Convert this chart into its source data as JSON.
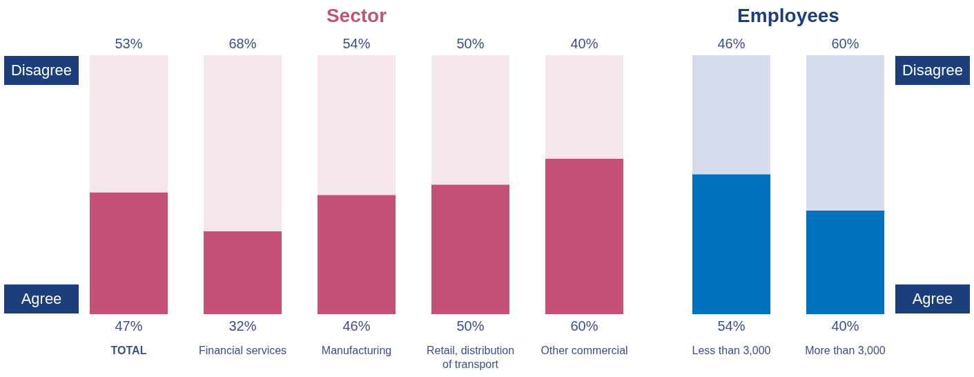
{
  "chart_data": [
    {
      "type": "bar",
      "title": "Sector",
      "categories": [
        "TOTAL",
        "Financial services",
        "Manufacturing",
        "Retail, distribution of transport",
        "Other commercial"
      ],
      "stacked": true,
      "legend": false,
      "series": [
        {
          "name": "Agree",
          "color": "#c45278",
          "values": [
            47,
            32,
            46,
            50,
            60
          ],
          "value_labels": [
            "47%",
            "32%",
            "46%",
            "50%",
            "60%"
          ]
        },
        {
          "name": "Disagree",
          "color": "#f5e6ea",
          "values": [
            53,
            68,
            54,
            50,
            40
          ],
          "value_labels": [
            "53%",
            "68%",
            "54%",
            "50%",
            "40%"
          ]
        }
      ]
    },
    {
      "type": "bar",
      "title": "Employees",
      "categories": [
        "Less than 3,000",
        "More than 3,000"
      ],
      "stacked": true,
      "legend": false,
      "series": [
        {
          "name": "Agree",
          "color": "#0072bb",
          "values": [
            54,
            40
          ],
          "value_labels": [
            "54%",
            "40%"
          ]
        },
        {
          "name": "Disagree",
          "color": "#d6dcee",
          "values": [
            46,
            60
          ],
          "value_labels": [
            "46%",
            "60%"
          ]
        }
      ]
    }
  ]
}
